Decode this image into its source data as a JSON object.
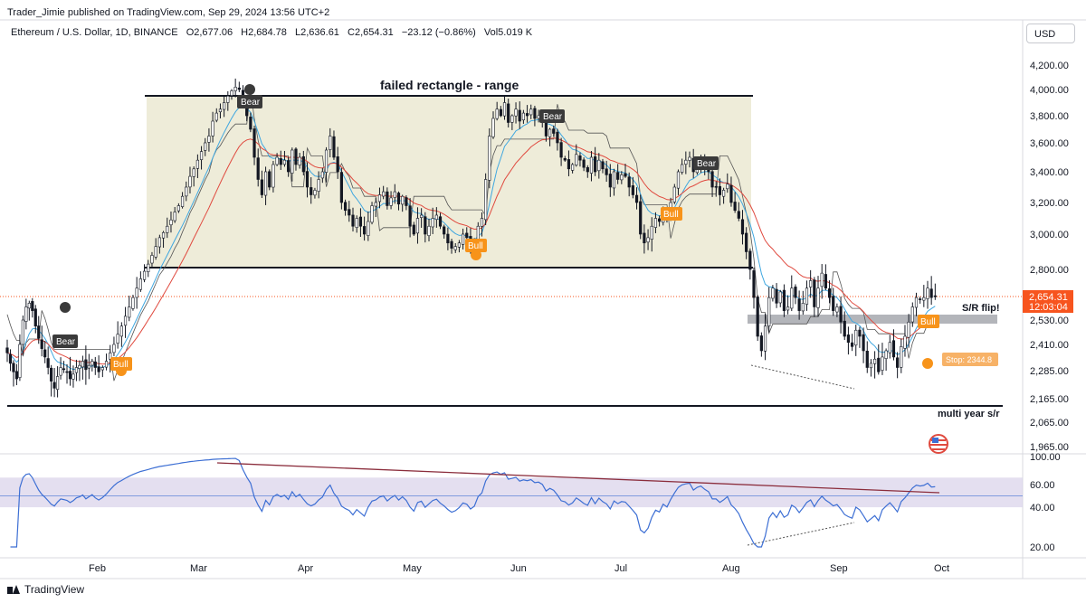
{
  "publisher": {
    "text": "Trader_Jimie published on TradingView.com, Sep 29, 2024 13:56 UTC+2"
  },
  "header": {
    "symbol": "Ethereum / U.S. Dollar, 1D, BINANCE",
    "open_label": "O",
    "open": "2,677.06",
    "high_label": "H",
    "high": "2,684.78",
    "low_label": "L",
    "low": "2,636.61",
    "close_label": "C",
    "close": "2,654.31",
    "change": "−23.12 (−0.86%)",
    "vol_label": "Vol",
    "vol": "5.019 K"
  },
  "currency": "USD",
  "brand": "TradingView",
  "colors": {
    "up": "#ffffff",
    "down": "#131722",
    "ema_fast": "#3fa7e0",
    "ema_slow": "#e04a3f",
    "trail_stop": "#555555",
    "bull": "#f7931a",
    "bear": "#3a3a3a",
    "rsi": "#3d6fd4",
    "price_tag": "#f7541e",
    "box": "#e8e6cc"
  },
  "chart_data": [
    {
      "type": "candlestick",
      "title": "Ethereum / U.S. Dollar, 1D, BINANCE",
      "x_ticks": [
        "Feb",
        "Mar",
        "Apr",
        "May",
        "Jun",
        "Jul",
        "Aug",
        "Sep",
        "Oct"
      ],
      "y_ticks": [
        "4,200.00",
        "4,000.00",
        "3,800.00",
        "3,600.00",
        "3,400.00",
        "3,200.00",
        "3,000.00",
        "2,800.00",
        "2,530.00",
        "2,410.00",
        "2,285.00",
        "2,165.00",
        "2,065.00",
        "1,965.00"
      ],
      "y_tick_values": [
        4200,
        4000,
        3800,
        3600,
        3400,
        3200,
        3000,
        2800,
        2530,
        2410,
        2285,
        2165,
        2065,
        1965
      ],
      "current_price": {
        "value": "2,654.31",
        "countdown": "12:03:04",
        "numeric": 2654.31
      },
      "date_range": [
        "2024-01-01",
        "2024-09-29"
      ],
      "close_series": [
        2370,
        2320,
        2280,
        2250,
        2410,
        2530,
        2600,
        2620,
        2580,
        2500,
        2440,
        2390,
        2350,
        2300,
        2240,
        2210,
        2260,
        2300,
        2290,
        2280,
        2250,
        2270,
        2300,
        2310,
        2330,
        2290,
        2310,
        2330,
        2300,
        2280,
        2300,
        2330,
        2370,
        2410,
        2460,
        2500,
        2550,
        2600,
        2650,
        2700,
        2750,
        2790,
        2830,
        2880,
        2930,
        2980,
        3010,
        3050,
        3090,
        3140,
        3180,
        3240,
        3300,
        3370,
        3420,
        3480,
        3540,
        3600,
        3650,
        3760,
        3820,
        3850,
        3900,
        3950,
        3990,
        4020,
        4000,
        3900,
        3800,
        3700,
        3500,
        3350,
        3250,
        3400,
        3300,
        3450,
        3500,
        3450,
        3480,
        3400,
        3550,
        3450,
        3500,
        3400,
        3300,
        3250,
        3280,
        3350,
        3400,
        3550,
        3650,
        3500,
        3400,
        3200,
        3150,
        3120,
        3050,
        3100,
        3050,
        3000,
        3080,
        3180,
        3200,
        3250,
        3270,
        3180,
        3230,
        3270,
        3190,
        3240,
        3180,
        3050,
        3000,
        3100,
        3120,
        3000,
        3050,
        3100,
        3120,
        3050,
        3000,
        2950,
        2920,
        2930,
        2950,
        3000,
        2980,
        2920,
        2940,
        3050,
        3100,
        3350,
        3650,
        3780,
        3850,
        3800,
        3900,
        3750,
        3800,
        3850,
        3760,
        3820,
        3800,
        3850,
        3780,
        3800,
        3750,
        3650,
        3700,
        3670,
        3600,
        3500,
        3480,
        3420,
        3450,
        3520,
        3480,
        3430,
        3400,
        3500,
        3400,
        3480,
        3420,
        3380,
        3300,
        3400,
        3350,
        3380,
        3370,
        3300,
        3250,
        3200,
        3000,
        2950,
        2980,
        3050,
        3100,
        3080,
        3150,
        3100,
        3200,
        3300,
        3400,
        3450,
        3480,
        3500,
        3400,
        3450,
        3470,
        3430,
        3400,
        3300,
        3300,
        3250,
        3280,
        3320,
        3200,
        3150,
        3100,
        3000,
        2900,
        2800,
        2650,
        2450,
        2380,
        2500,
        2650,
        2700,
        2620,
        2680,
        2580,
        2600,
        2700,
        2650,
        2580,
        2620,
        2700,
        2740,
        2600,
        2700,
        2780,
        2700,
        2650,
        2580,
        2600,
        2520,
        2450,
        2420,
        2400,
        2480,
        2450,
        2380,
        2300,
        2320,
        2340,
        2280,
        2350,
        2380,
        2420,
        2350,
        2300,
        2400,
        2450,
        2520,
        2600,
        2650,
        2640,
        2650,
        2700,
        2650,
        2654
      ]
    },
    {
      "type": "line",
      "x_ticks": [
        "Feb",
        "Mar",
        "Apr",
        "May",
        "Jun",
        "Jul",
        "Aug",
        "Sep",
        "Oct"
      ],
      "y_ticks": [
        "100.00",
        "60.00",
        "40.00",
        "20.00"
      ],
      "y_tick_values": [
        100,
        60,
        40,
        20
      ],
      "band": [
        40,
        70
      ],
      "midline": 50
    }
  ],
  "annotations": {
    "range_title": "failed rectangle - range",
    "sr_flip": "S/R flip!",
    "multi_year": "multi year s/r",
    "stop_label": "Stop: 2344.8",
    "range_top": 3950,
    "range_bottom": 2800,
    "sr_level": 2530,
    "multi_year_level": 2140,
    "stop_level": 2344.8
  },
  "signals": [
    {
      "text": "Bear",
      "kind": "bear"
    },
    {
      "text": "Bull",
      "kind": "bull"
    },
    {
      "text": "Bear",
      "kind": "bear"
    },
    {
      "text": "Bear",
      "kind": "bear"
    },
    {
      "text": "Bull",
      "kind": "bull"
    },
    {
      "text": "Bull",
      "kind": "bull"
    },
    {
      "text": "Bear",
      "kind": "bear"
    },
    {
      "text": "Bull",
      "kind": "bull"
    }
  ]
}
